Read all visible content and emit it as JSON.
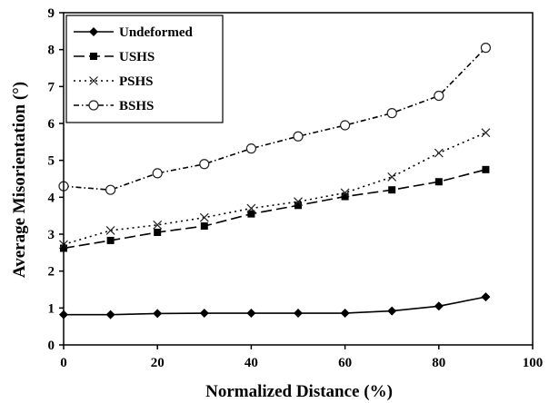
{
  "chart_data": {
    "type": "line",
    "xlabel": "Normalized Distance (%)",
    "ylabel": "Average Misorientation (°)",
    "xlim": [
      0,
      100
    ],
    "ylim": [
      0,
      9
    ],
    "xticks": [
      0,
      20,
      40,
      60,
      80,
      100
    ],
    "yticks": [
      0,
      1,
      2,
      3,
      4,
      5,
      6,
      7,
      8,
      9
    ],
    "grid": false,
    "legend_position": "top-left",
    "x": [
      0,
      10,
      20,
      30,
      40,
      50,
      60,
      70,
      80,
      90
    ],
    "series": [
      {
        "name": "Undeformed",
        "marker": "diamond-filled",
        "line_style": "solid",
        "values": [
          0.82,
          0.82,
          0.85,
          0.86,
          0.86,
          0.86,
          0.86,
          0.92,
          1.05,
          1.3
        ]
      },
      {
        "name": "USHS",
        "marker": "square-filled",
        "line_style": "long-dash",
        "values": [
          2.62,
          2.83,
          3.05,
          3.22,
          3.55,
          3.78,
          4.02,
          4.2,
          4.42,
          4.75
        ]
      },
      {
        "name": "PSHS",
        "marker": "x",
        "line_style": "dotted",
        "values": [
          2.72,
          3.1,
          3.25,
          3.45,
          3.7,
          3.88,
          4.12,
          4.55,
          5.2,
          5.75
        ]
      },
      {
        "name": "BSHS",
        "marker": "circle-open",
        "line_style": "dash-dot",
        "values": [
          4.3,
          4.2,
          4.65,
          4.9,
          5.32,
          5.65,
          5.95,
          6.28,
          6.75,
          8.05
        ]
      }
    ]
  }
}
